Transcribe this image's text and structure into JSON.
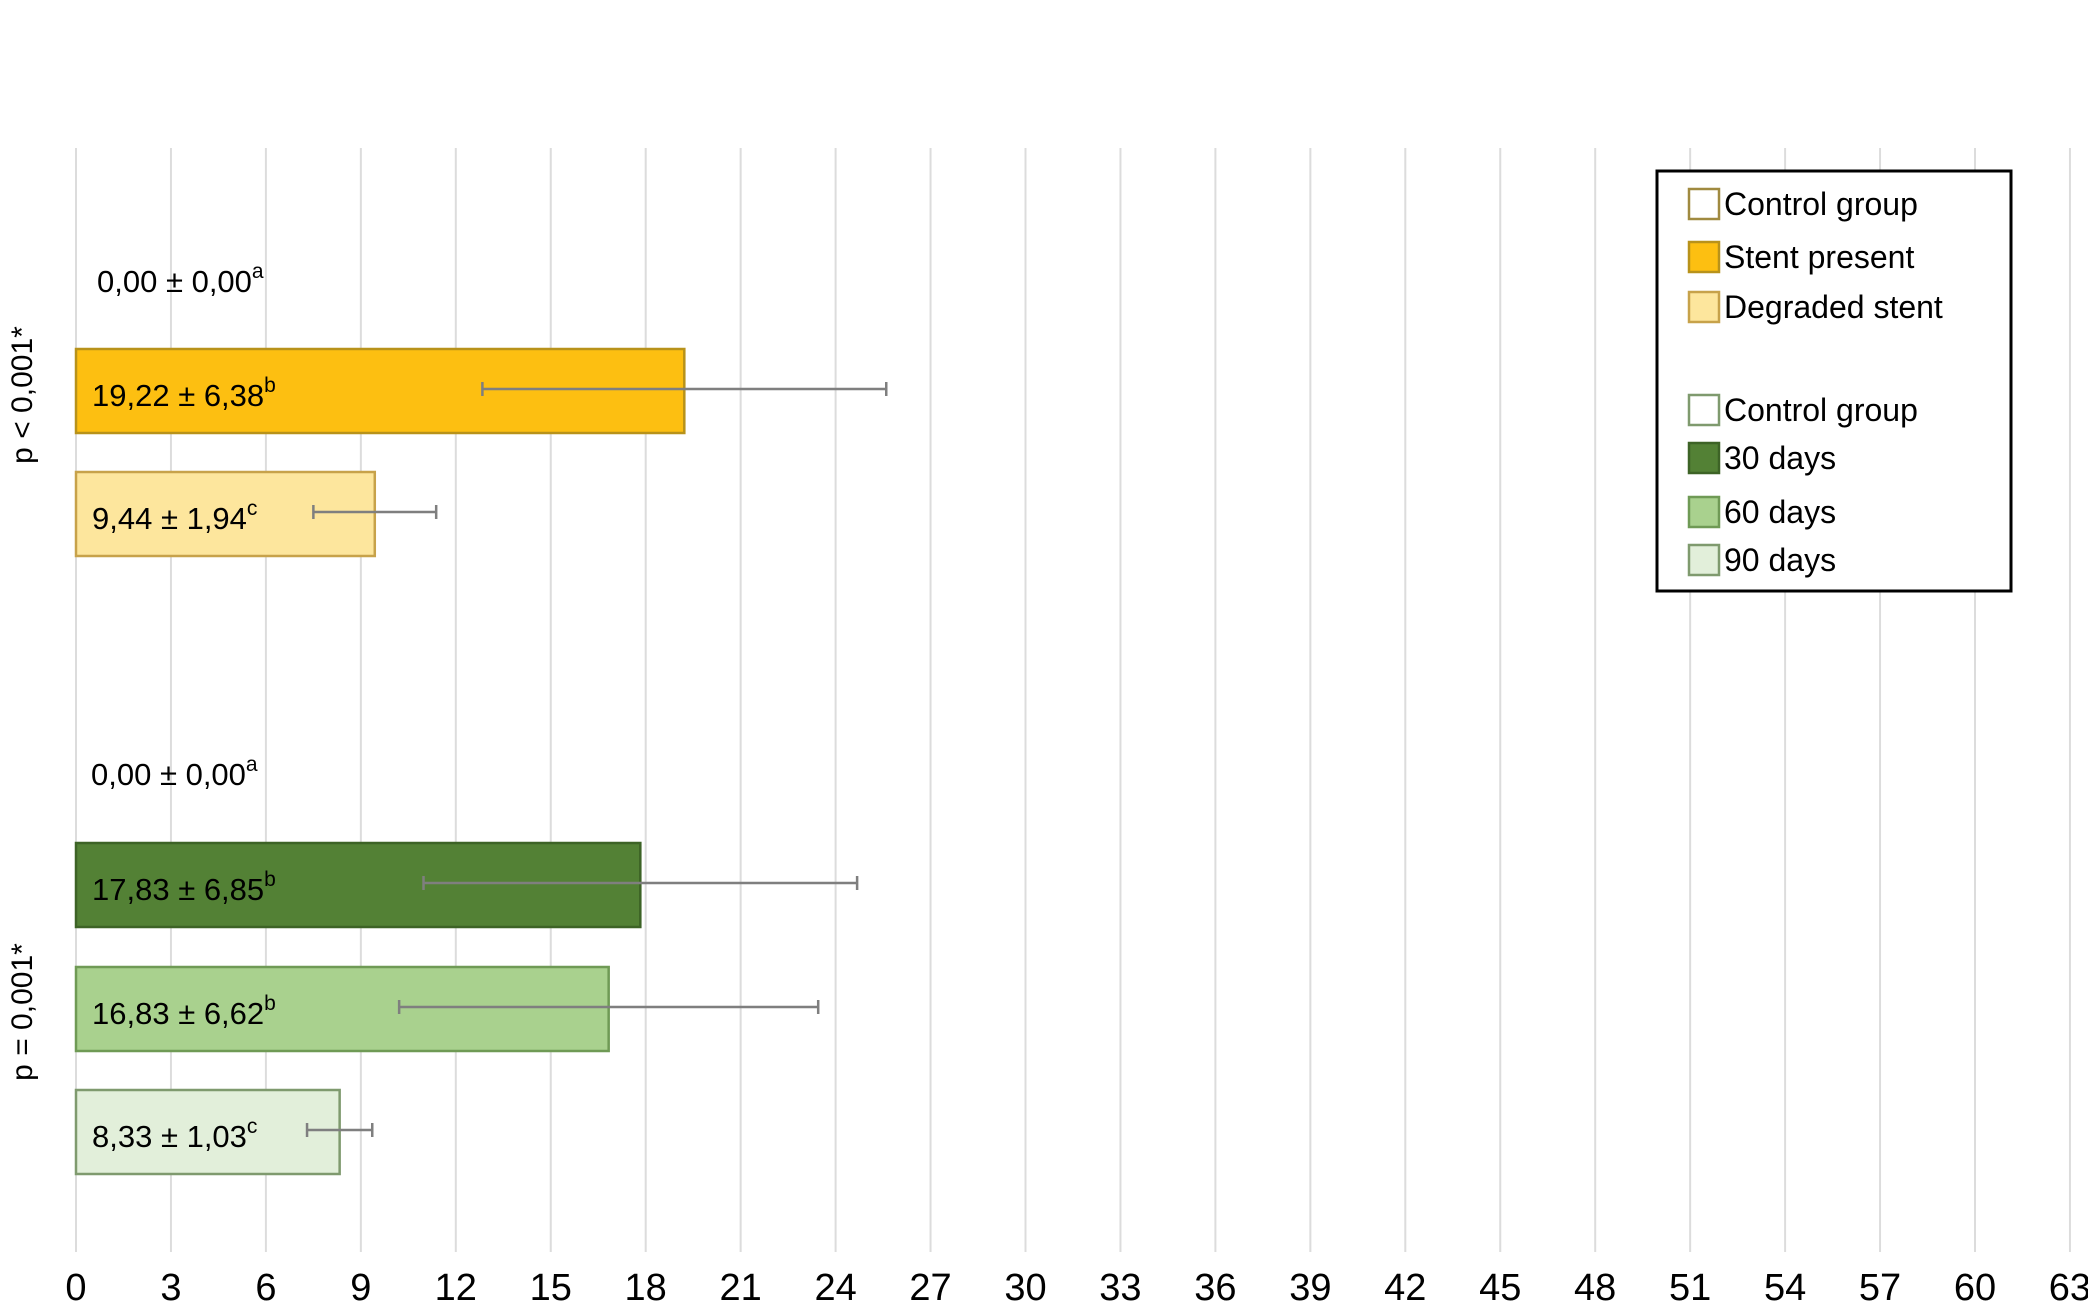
{
  "chart_data": {
    "type": "bar",
    "orientation": "horizontal",
    "title": "",
    "xlabel": "",
    "ylabel": "",
    "xlim": [
      0,
      63
    ],
    "x_ticks": [
      0,
      3,
      6,
      9,
      12,
      15,
      18,
      21,
      24,
      27,
      30,
      33,
      36,
      39,
      42,
      45,
      48,
      51,
      54,
      57,
      60,
      63
    ],
    "grid": "vertical",
    "legend_position": "top-right",
    "groups": [
      {
        "label": "p < 0,001*",
        "bars": [
          {
            "series": "Control group",
            "value": 0.0,
            "error": 0.0,
            "label": "0,00 ± 0,00",
            "letter": "a",
            "color": "#ffffff",
            "border": "#a08a40"
          },
          {
            "series": "Stent present",
            "value": 19.22,
            "error": 6.38,
            "label": "19,22 ± 6,38",
            "letter": "b",
            "color": "#fdbf11",
            "border": "#b8921a"
          },
          {
            "series": "Degraded stent",
            "value": 9.44,
            "error": 1.94,
            "label": "9,44 ± 1,94",
            "letter": "c",
            "color": "#fde69d",
            "border": "#c7a24a"
          }
        ]
      },
      {
        "label": "p = 0,001*",
        "bars": [
          {
            "series": "Control group",
            "value": 0.0,
            "error": 0.0,
            "label": "0,00 ± 0,00",
            "letter": "a",
            "color": "#ffffff",
            "border": "#7f9a6e"
          },
          {
            "series": "30 days",
            "value": 17.83,
            "error": 6.85,
            "label": "17,83 ± 6,85",
            "letter": "b",
            "color": "#538135",
            "border": "#3d6326"
          },
          {
            "series": "60 days",
            "value": 16.83,
            "error": 6.62,
            "label": "16,83 ± 6,62",
            "letter": "b",
            "color": "#a9d18e",
            "border": "#6f9a55"
          },
          {
            "series": "90 days",
            "value": 8.33,
            "error": 1.03,
            "label": "8,33 ± 1,03",
            "letter": "c",
            "color": "#e2efda",
            "border": "#7f9a6e"
          }
        ]
      }
    ],
    "legend": [
      {
        "name": "Control group",
        "color": "#ffffff",
        "border": "#a08a40"
      },
      {
        "name": "Stent present",
        "color": "#fdbf11",
        "border": "#b8921a"
      },
      {
        "name": "Degraded stent",
        "color": "#fde69d",
        "border": "#c7a24a"
      },
      {
        "name": "Control group",
        "color": "#ffffff",
        "border": "#7f9a6e"
      },
      {
        "name": "30 days",
        "color": "#538135",
        "border": "#3d6326"
      },
      {
        "name": "60 days",
        "color": "#a9d18e",
        "border": "#6f9a55"
      },
      {
        "name": "90 days",
        "color": "#e2efda",
        "border": "#7f9a6e"
      }
    ],
    "colors": {
      "grid": "#dcdcdc",
      "error_bar": "#7f7f7f",
      "legend_border": "#000000"
    }
  }
}
